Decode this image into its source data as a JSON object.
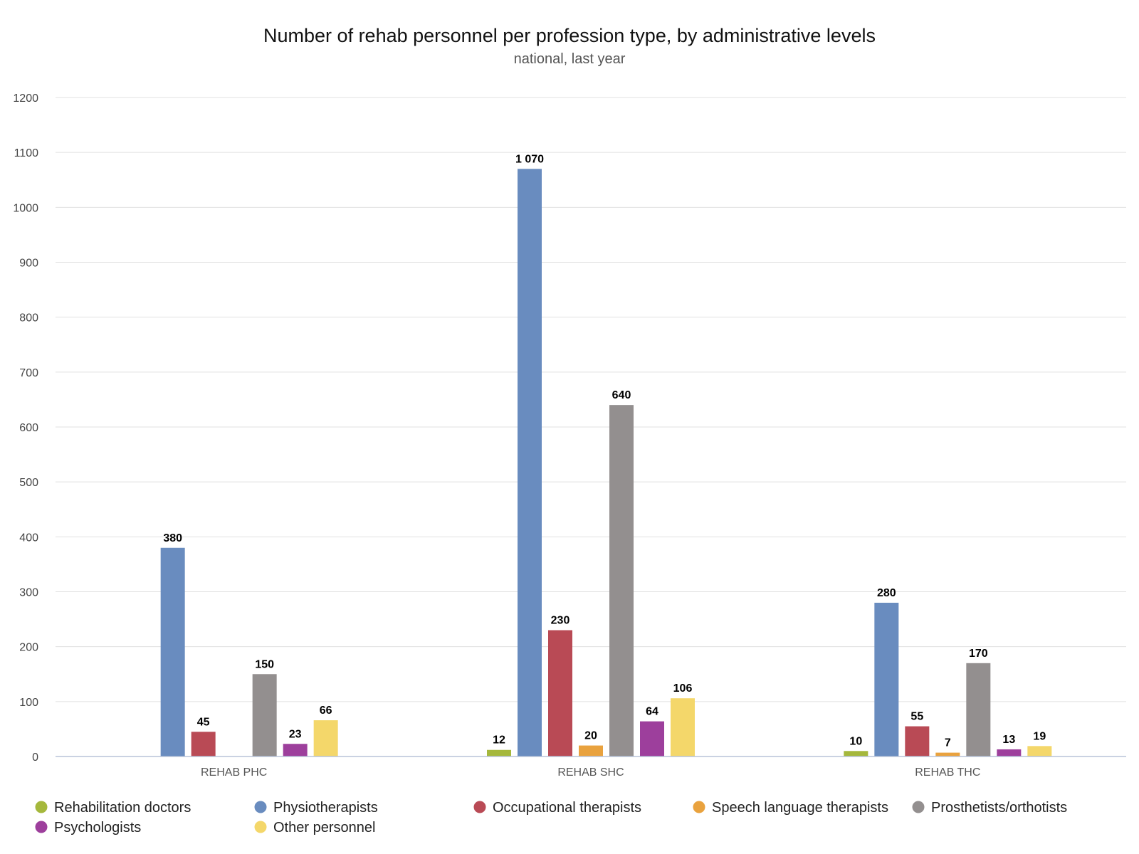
{
  "chart_data": {
    "type": "bar",
    "title": "Number of rehab personnel per profession type, by administrative levels",
    "subtitle": "national, last year",
    "categories": [
      "REHAB PHC",
      "REHAB SHC",
      "REHAB THC"
    ],
    "y_ticks": [
      "0",
      "100",
      "200",
      "300",
      "400",
      "500",
      "600",
      "700",
      "800",
      "900",
      "1000",
      "1100",
      "1200"
    ],
    "ylim": [
      0,
      1200
    ],
    "grid": true,
    "legend_position": "bottom",
    "series": [
      {
        "name": "Rehabilitation doctors",
        "color": "#a5b83c",
        "values": [
          null,
          12,
          10
        ],
        "labels": [
          "",
          "12",
          "10"
        ]
      },
      {
        "name": "Physiotherapists",
        "color": "#698cbf",
        "values": [
          380,
          1070,
          280
        ],
        "labels": [
          "380",
          "1 070",
          "280"
        ]
      },
      {
        "name": "Occupational therapists",
        "color": "#b94a55",
        "values": [
          45,
          230,
          55
        ],
        "labels": [
          "45",
          "230",
          "55"
        ]
      },
      {
        "name": "Speech language therapists",
        "color": "#e9a23e",
        "values": [
          null,
          20,
          7
        ],
        "labels": [
          "",
          "20",
          "7"
        ]
      },
      {
        "name": "Prosthetists/orthotists",
        "color": "#938f8f",
        "values": [
          150,
          640,
          170
        ],
        "labels": [
          "150",
          "640",
          "170"
        ]
      },
      {
        "name": "Psychologists",
        "color": "#9d3f9c",
        "values": [
          23,
          64,
          13
        ],
        "labels": [
          "23",
          "64",
          "13"
        ]
      },
      {
        "name": "Other personnel",
        "color": "#f4d76a",
        "values": [
          66,
          106,
          19
        ],
        "labels": [
          "66",
          "106",
          "19"
        ]
      }
    ]
  }
}
